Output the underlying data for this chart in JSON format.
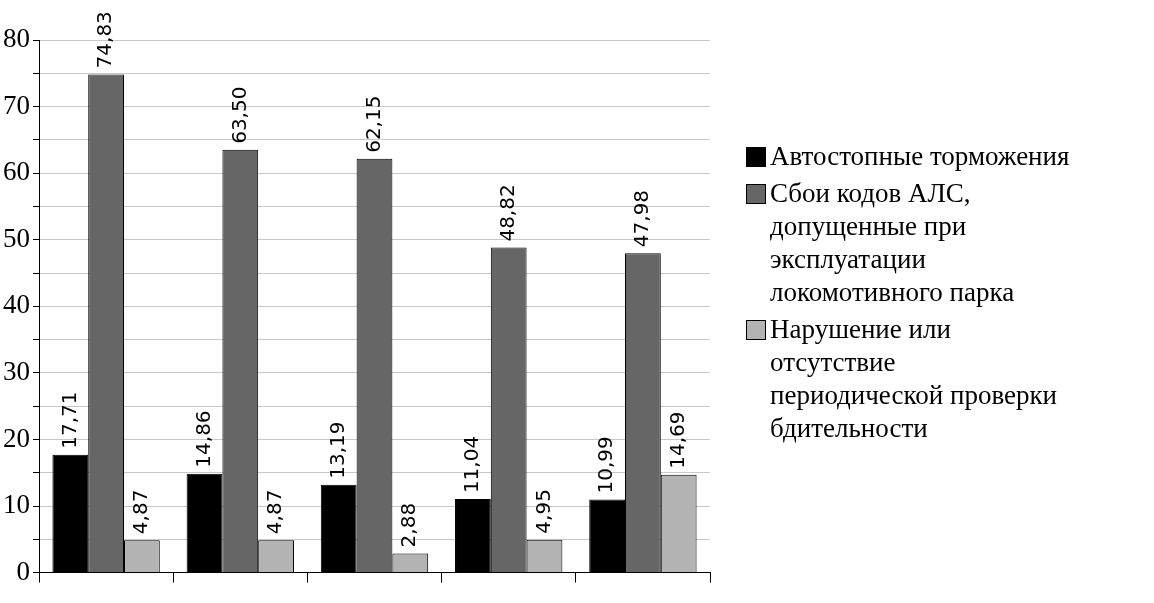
{
  "chart_data": {
    "type": "bar",
    "categories": [
      null,
      null,
      null,
      null,
      null
    ],
    "series": [
      {
        "name": "Автостопные торможения",
        "color": "#000000",
        "values": [
          17.71,
          14.86,
          13.19,
          11.04,
          10.99
        ],
        "value_labels": [
          "17,71",
          "14,86",
          "13,19",
          "11,04",
          "10,99"
        ]
      },
      {
        "name": "Сбои кодов АЛС, допущенные при эксплуатации локомотивного парка",
        "color": "#666666",
        "values": [
          74.83,
          63.5,
          62.15,
          48.82,
          47.98
        ],
        "value_labels": [
          "74,83",
          "63,50",
          "62,15",
          "48,82",
          "47,98"
        ]
      },
      {
        "name": "Нарушение или отсутствие периодической проверки бдительности",
        "color": "#b3b3b3",
        "values": [
          4.87,
          4.87,
          2.88,
          4.95,
          14.69
        ],
        "value_labels": [
          "4,87",
          "4,87",
          "2,88",
          "4,95",
          "14,69"
        ]
      }
    ],
    "ylim": [
      0,
      80
    ],
    "yticks": [
      0,
      {
        "value": 5,
        "label": null
      },
      10,
      {
        "value": 15,
        "label": null
      },
      20,
      {
        "value": 25,
        "label": null
      },
      30,
      {
        "value": 35,
        "label": null
      },
      40,
      {
        "value": 45,
        "label": null
      },
      50,
      {
        "value": 55,
        "label": null
      },
      60,
      {
        "value": 65,
        "label": null
      },
      70,
      {
        "value": 75,
        "label": null
      },
      80
    ],
    "grid": "y",
    "legend": "right"
  }
}
